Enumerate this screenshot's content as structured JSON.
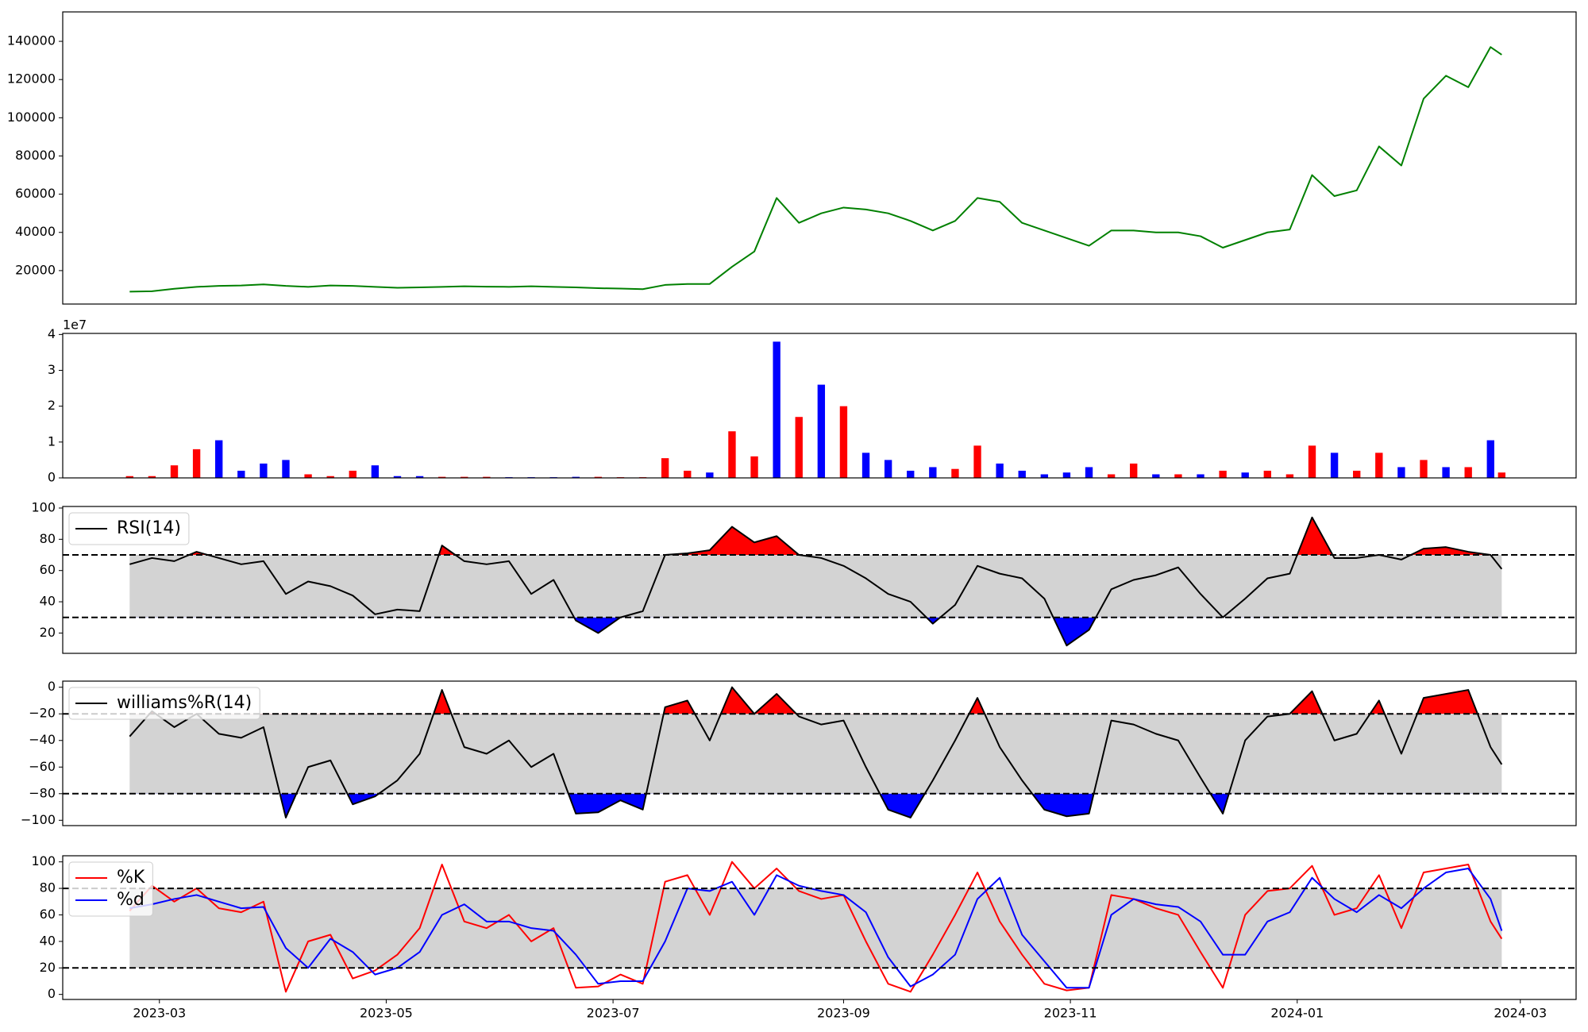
{
  "chart_data": [
    {
      "type": "line",
      "xlim": [
        -26,
        381
      ],
      "x": [
        -8,
        -2,
        4,
        10,
        16,
        22,
        28,
        34,
        40,
        46,
        52,
        58,
        64,
        70,
        76,
        82,
        88,
        94,
        100,
        106,
        112,
        118,
        124,
        130,
        136,
        142,
        148,
        154,
        160,
        166,
        172,
        178,
        184,
        190,
        196,
        202,
        208,
        214,
        220,
        226,
        232,
        238,
        244,
        250,
        256,
        262,
        268,
        274,
        280,
        286,
        292,
        298,
        304,
        310,
        316,
        322,
        328,
        334,
        340,
        346,
        352,
        358,
        361
      ],
      "series": [
        {
          "color": "green",
          "values": [
            9000,
            9200,
            10500,
            11500,
            12000,
            12200,
            12800,
            12000,
            11500,
            12200,
            12000,
            11500,
            11000,
            11200,
            11500,
            11800,
            11600,
            11500,
            11800,
            11500,
            11200,
            10800,
            10600,
            10300,
            12500,
            13000,
            13000,
            22000,
            30000,
            58000,
            45000,
            50000,
            53000,
            52000,
            50000,
            46000,
            41000,
            46000,
            58000,
            56000,
            45000,
            41000,
            37000,
            33000,
            41000,
            41000,
            40000,
            40000,
            38000,
            32000,
            36000,
            40000,
            41500,
            70000,
            59000,
            62000,
            85000,
            75000,
            110000,
            122000,
            116000,
            137000,
            133000
          ]
        }
      ],
      "ylim": [
        2500,
        155400
      ],
      "yticks": [
        20000,
        40000,
        60000,
        80000,
        100000,
        120000,
        140000
      ]
    },
    {
      "type": "bar",
      "xlim": [
        -26,
        381
      ],
      "offset_text": "1e7",
      "x": [
        -8,
        -2,
        4,
        10,
        16,
        22,
        28,
        34,
        40,
        46,
        52,
        58,
        64,
        70,
        76,
        82,
        88,
        94,
        100,
        106,
        112,
        118,
        124,
        130,
        136,
        142,
        148,
        154,
        160,
        166,
        172,
        178,
        184,
        190,
        196,
        202,
        208,
        214,
        220,
        226,
        232,
        238,
        244,
        250,
        256,
        262,
        268,
        274,
        280,
        286,
        292,
        298,
        304,
        310,
        316,
        322,
        328,
        334,
        340,
        346,
        352,
        358,
        361
      ],
      "values": [
        0.05,
        0.05,
        0.35,
        0.8,
        1.05,
        0.2,
        0.4,
        0.5,
        0.1,
        0.05,
        0.2,
        0.35,
        0.05,
        0.05,
        0.03,
        0.03,
        0.03,
        0.02,
        0.02,
        0.02,
        0.03,
        0.03,
        0.02,
        0.02,
        0.55,
        0.2,
        0.15,
        1.3,
        0.6,
        3.8,
        1.7,
        2.6,
        2.0,
        0.7,
        0.5,
        0.2,
        0.3,
        0.25,
        0.9,
        0.4,
        0.2,
        0.1,
        0.15,
        0.3,
        0.1,
        0.4,
        0.1,
        0.1,
        0.1,
        0.2,
        0.15,
        0.2,
        0.1,
        0.9,
        0.7,
        0.2,
        0.7,
        0.3,
        0.5,
        0.3,
        0.3,
        1.05,
        0.15
      ],
      "colors": [
        "red",
        "red",
        "red",
        "red",
        "blue",
        "blue",
        "blue",
        "blue",
        "red",
        "red",
        "red",
        "blue",
        "blue",
        "blue",
        "red",
        "red",
        "red",
        "blue",
        "blue",
        "blue",
        "blue",
        "red",
        "red",
        "red",
        "red",
        "red",
        "blue",
        "red",
        "red",
        "blue",
        "red",
        "blue",
        "red",
        "blue",
        "blue",
        "blue",
        "blue",
        "red",
        "red",
        "blue",
        "blue",
        "blue",
        "blue",
        "blue",
        "red",
        "red",
        "blue",
        "red",
        "blue",
        "red",
        "blue",
        "red",
        "red",
        "red",
        "blue",
        "red",
        "red",
        "blue",
        "red",
        "blue",
        "red",
        "blue",
        "red"
      ],
      "ylim": [
        0,
        4.03
      ],
      "yticks": [
        0,
        1,
        2,
        3,
        4
      ]
    },
    {
      "type": "line",
      "xlim": [
        -26,
        381
      ],
      "legend": "upper left",
      "x": [
        -8,
        -2,
        4,
        10,
        16,
        22,
        28,
        34,
        40,
        46,
        52,
        58,
        64,
        70,
        76,
        82,
        88,
        94,
        100,
        106,
        112,
        118,
        124,
        130,
        136,
        142,
        148,
        154,
        160,
        166,
        172,
        178,
        184,
        190,
        196,
        202,
        208,
        214,
        220,
        226,
        232,
        238,
        244,
        250,
        256,
        262,
        268,
        274,
        280,
        286,
        292,
        298,
        304,
        310,
        316,
        322,
        328,
        334,
        340,
        346,
        352,
        358,
        361
      ],
      "series": [
        {
          "name": "RSI(14)",
          "color": "black",
          "values": [
            64,
            68,
            66,
            72,
            68,
            64,
            66,
            45,
            53,
            50,
            44,
            32,
            35,
            34,
            76,
            66,
            64,
            66,
            45,
            54,
            28,
            20,
            30,
            34,
            70,
            71,
            73,
            88,
            78,
            82,
            70,
            68,
            63,
            55,
            45,
            40,
            26,
            38,
            63,
            58,
            55,
            42,
            12,
            22,
            48,
            54,
            57,
            62,
            45,
            30,
            42,
            55,
            58,
            94,
            68,
            68,
            70,
            67,
            74,
            75,
            72,
            70,
            61
          ]
        }
      ],
      "thresholds": [
        30,
        70
      ],
      "band_color": "lightgray",
      "fill_above_color": "red",
      "fill_below_color": "blue",
      "ylim": [
        7,
        101
      ],
      "yticks": [
        20,
        40,
        60,
        80,
        100
      ]
    },
    {
      "type": "line",
      "xlim": [
        -26,
        381
      ],
      "legend": "upper left",
      "x": [
        -8,
        -2,
        4,
        10,
        16,
        22,
        28,
        34,
        40,
        46,
        52,
        58,
        64,
        70,
        76,
        82,
        88,
        94,
        100,
        106,
        112,
        118,
        124,
        130,
        136,
        142,
        148,
        154,
        160,
        166,
        172,
        178,
        184,
        190,
        196,
        202,
        208,
        214,
        220,
        226,
        232,
        238,
        244,
        250,
        256,
        262,
        268,
        274,
        280,
        286,
        292,
        298,
        304,
        310,
        316,
        322,
        328,
        334,
        340,
        346,
        352,
        358,
        361
      ],
      "series": [
        {
          "name": "williams%R(14)",
          "color": "black",
          "values": [
            -37,
            -18,
            -30,
            -20,
            -35,
            -38,
            -30,
            -98,
            -60,
            -55,
            -88,
            -82,
            -70,
            -50,
            -2,
            -45,
            -50,
            -40,
            -60,
            -50,
            -95,
            -94,
            -85,
            -92,
            -15,
            -10,
            -40,
            0,
            -20,
            -5,
            -22,
            -28,
            -25,
            -60,
            -92,
            -98,
            -70,
            -40,
            -8,
            -45,
            -70,
            -92,
            -97,
            -95,
            -25,
            -28,
            -35,
            -40,
            -68,
            -95,
            -40,
            -22,
            -20,
            -3,
            -40,
            -35,
            -10,
            -50,
            -8,
            -5,
            -2,
            -45,
            -58
          ]
        }
      ],
      "thresholds": [
        -80,
        -20
      ],
      "band_color": "lightgray",
      "fill_above_color": "red",
      "fill_below_color": "blue",
      "ylim": [
        -104,
        4.6
      ],
      "yticks": [
        {
          "value": -100,
          "label": "−100"
        },
        {
          "value": -80,
          "label": "−80"
        },
        {
          "value": -60,
          "label": "−60"
        },
        {
          "value": -40,
          "label": "−40"
        },
        {
          "value": -20,
          "label": "−20"
        },
        0
      ]
    },
    {
      "type": "line",
      "xlim": [
        -26,
        381
      ],
      "legend": "upper left",
      "x": [
        -8,
        -2,
        4,
        10,
        16,
        22,
        28,
        34,
        40,
        46,
        52,
        58,
        64,
        70,
        76,
        82,
        88,
        94,
        100,
        106,
        112,
        118,
        124,
        130,
        136,
        142,
        148,
        154,
        160,
        166,
        172,
        178,
        184,
        190,
        196,
        202,
        208,
        214,
        220,
        226,
        232,
        238,
        244,
        250,
        256,
        262,
        268,
        274,
        280,
        286,
        292,
        298,
        304,
        310,
        316,
        322,
        328,
        334,
        340,
        346,
        352,
        358,
        361
      ],
      "series": [
        {
          "name": "%K",
          "color": "red",
          "values": [
            63,
            82,
            70,
            80,
            65,
            62,
            70,
            2,
            40,
            45,
            12,
            18,
            30,
            50,
            98,
            55,
            50,
            60,
            40,
            50,
            5,
            6,
            15,
            8,
            85,
            90,
            60,
            100,
            80,
            95,
            78,
            72,
            75,
            40,
            8,
            2,
            30,
            60,
            92,
            55,
            30,
            8,
            3,
            5,
            75,
            72,
            65,
            60,
            32,
            5,
            60,
            78,
            80,
            97,
            60,
            65,
            90,
            50,
            92,
            95,
            98,
            55,
            42
          ]
        },
        {
          "name": "%d",
          "color": "blue",
          "values": [
            65,
            68,
            72,
            75,
            70,
            65,
            66,
            35,
            20,
            42,
            32,
            15,
            20,
            32,
            60,
            68,
            55,
            55,
            50,
            48,
            30,
            8,
            10,
            10,
            40,
            80,
            78,
            85,
            60,
            90,
            82,
            78,
            75,
            62,
            28,
            6,
            15,
            30,
            72,
            88,
            45,
            25,
            5,
            5,
            60,
            72,
            68,
            66,
            55,
            30,
            30,
            55,
            62,
            88,
            72,
            62,
            75,
            65,
            80,
            92,
            95,
            72,
            48
          ]
        }
      ],
      "thresholds": [
        20,
        80
      ],
      "band_color": "lightgray",
      "ylim": [
        -3.8,
        104.6
      ],
      "yticks": [
        0,
        20,
        40,
        60,
        80,
        100
      ],
      "xticks": [
        {
          "value": 0,
          "label": "2023-03"
        },
        {
          "value": 61,
          "label": "2023-05"
        },
        {
          "value": 122,
          "label": "2023-07"
        },
        {
          "value": 184,
          "label": "2023-09"
        },
        {
          "value": 245,
          "label": "2023-11"
        },
        {
          "value": 306,
          "label": "2024-01"
        },
        {
          "value": 366,
          "label": "2024-03"
        }
      ]
    }
  ]
}
